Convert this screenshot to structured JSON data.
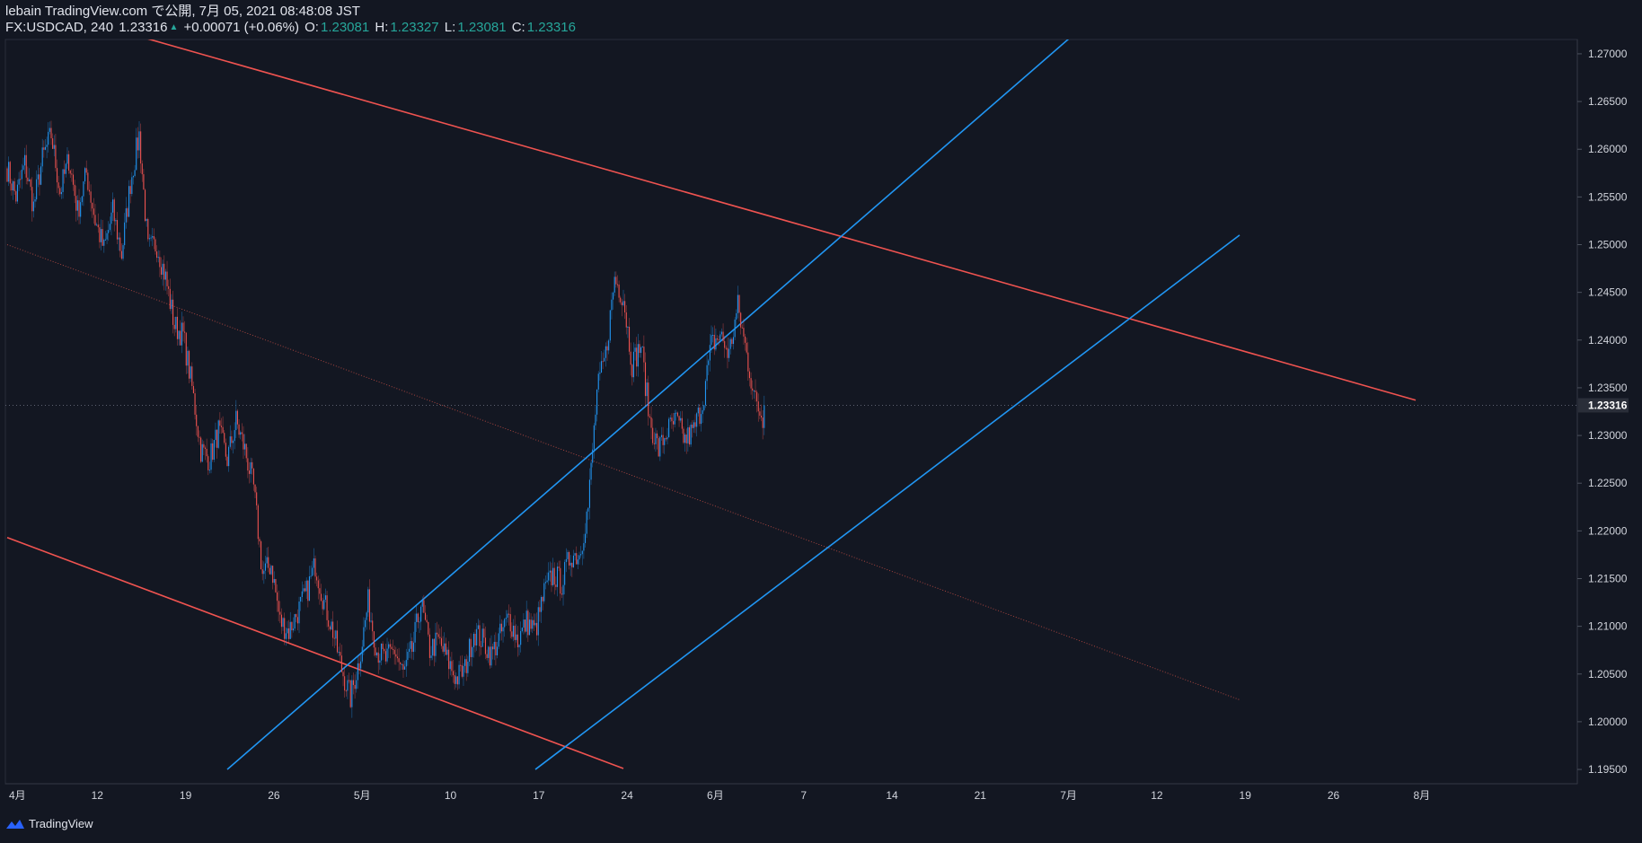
{
  "header": {
    "line1": "lebain TradingView.com で公開, 7月 05, 2021 08:48:08 JST",
    "symbol": "FX:USDCAD, 240",
    "last": "1.23316",
    "change": "+0.00071 (+0.06%)",
    "o_label": "O:",
    "o_val": "1.23081",
    "h_label": "H:",
    "h_val": "1.23327",
    "l_label": "L:",
    "l_val": "1.23081",
    "c_label": "C:",
    "c_val": "1.23316"
  },
  "footer": {
    "brand": "TradingView"
  },
  "colors": {
    "background": "#131722",
    "up": "#2196f3",
    "down": "#ef5350",
    "grid": "#2a2e39",
    "text": "#d1d4dc",
    "teal": "#26a69a"
  },
  "chart_data": {
    "type": "candlestick",
    "title": "FX:USDCAD, 240",
    "xlabel": "",
    "ylabel": "",
    "ylim": [
      1.1935,
      1.2715
    ],
    "x_tick_labels": [
      "4月",
      "12",
      "19",
      "26",
      "5月",
      "10",
      "17",
      "24",
      "6月",
      "7",
      "14",
      "21",
      "7月",
      "12",
      "19",
      "26",
      "8月"
    ],
    "y_tick_labels": [
      "1.27000",
      "1.26500",
      "1.26000",
      "1.25500",
      "1.25000",
      "1.24500",
      "1.24000",
      "1.23500",
      "1.23000",
      "1.22500",
      "1.22000",
      "1.21500",
      "1.21000",
      "1.20500",
      "1.20000",
      "1.19500"
    ],
    "current_price_label": "1.23316",
    "current_price": 1.23316,
    "keypoints": [
      [
        0,
        1.258
      ],
      [
        1,
        1.255
      ],
      [
        2,
        1.2585
      ],
      [
        3,
        1.254
      ],
      [
        4,
        1.259
      ],
      [
        5,
        1.2615
      ],
      [
        6,
        1.2555
      ],
      [
        7,
        1.259
      ],
      [
        8,
        1.2535
      ],
      [
        9,
        1.2575
      ],
      [
        10,
        1.2525
      ],
      [
        11,
        1.2495
      ],
      [
        12,
        1.2535
      ],
      [
        13,
        1.249
      ],
      [
        14,
        1.2565
      ],
      [
        15,
        1.2615
      ],
      [
        16,
        1.2495
      ],
      [
        17,
        1.25
      ],
      [
        18,
        1.2465
      ],
      [
        19,
        1.2415
      ],
      [
        20,
        1.2405
      ],
      [
        21,
        1.235
      ],
      [
        22,
        1.2285
      ],
      [
        23,
        1.2275
      ],
      [
        24,
        1.2305
      ],
      [
        25,
        1.2275
      ],
      [
        26,
        1.2315
      ],
      [
        27,
        1.2285
      ],
      [
        28,
        1.2245
      ],
      [
        29,
        1.2155
      ],
      [
        30,
        1.2165
      ],
      [
        31,
        1.2105
      ],
      [
        32,
        1.2095
      ],
      [
        33,
        1.2115
      ],
      [
        34,
        1.2135
      ],
      [
        35,
        1.2165
      ],
      [
        36,
        1.2125
      ],
      [
        37,
        1.2095
      ],
      [
        38,
        1.2055
      ],
      [
        39,
        1.2025
      ],
      [
        40,
        1.2065
      ],
      [
        41,
        1.2125
      ],
      [
        42,
        1.2075
      ],
      [
        43,
        1.2065
      ],
      [
        44,
        1.2075
      ],
      [
        45,
        1.205
      ],
      [
        46,
        1.2075
      ],
      [
        47,
        1.2125
      ],
      [
        48,
        1.2075
      ],
      [
        49,
        1.2085
      ],
      [
        50,
        1.2065
      ],
      [
        51,
        1.2045
      ],
      [
        52,
        1.2055
      ],
      [
        53,
        1.2095
      ],
      [
        54,
        1.2085
      ],
      [
        55,
        1.207
      ],
      [
        56,
        1.209
      ],
      [
        57,
        1.211
      ],
      [
        58,
        1.2085
      ],
      [
        59,
        1.2105
      ],
      [
        60,
        1.2095
      ],
      [
        61,
        1.2135
      ],
      [
        62,
        1.2155
      ],
      [
        63,
        1.2145
      ],
      [
        64,
        1.2175
      ],
      [
        65,
        1.2175
      ],
      [
        66,
        1.2225
      ],
      [
        67,
        1.2345
      ],
      [
        68,
        1.2385
      ],
      [
        69,
        1.2465
      ],
      [
        70,
        1.2445
      ],
      [
        71,
        1.2375
      ],
      [
        72,
        1.2395
      ],
      [
        73,
        1.2315
      ],
      [
        74,
        1.2285
      ],
      [
        75,
        1.2305
      ],
      [
        76,
        1.2315
      ],
      [
        77,
        1.2295
      ],
      [
        78,
        1.2305
      ],
      [
        79,
        1.2335
      ],
      [
        80,
        1.2395
      ],
      [
        81,
        1.2405
      ],
      [
        82,
        1.2385
      ],
      [
        83,
        1.2435
      ],
      [
        84,
        1.2385
      ],
      [
        85,
        1.2335
      ],
      [
        86,
        1.2315
      ]
    ],
    "current_candle_index": 86,
    "trendlines": [
      {
        "name": "upper-red",
        "color": "#ef5350",
        "from": {
          "d": -10,
          "p": 1.2784
        },
        "to": {
          "d": 160,
          "p": 1.2337
        }
      },
      {
        "name": "lower-red",
        "color": "#ef5350",
        "from": {
          "d": 0,
          "p": 1.2193
        },
        "to": {
          "d": 70,
          "p": 1.1951
        }
      },
      {
        "name": "mid-dotted",
        "color": "#a5443f",
        "from": {
          "d": 0,
          "p": 1.25
        },
        "to": {
          "d": 140,
          "p": 1.2023
        }
      },
      {
        "name": "upper-blue",
        "color": "#2196f3",
        "from": {
          "d": 25,
          "p": 1.195
        },
        "to": {
          "d": 122,
          "p": 1.2727
        }
      },
      {
        "name": "lower-blue",
        "color": "#2196f3",
        "from": {
          "d": 60,
          "p": 1.195
        },
        "to": {
          "d": 140,
          "p": 1.251
        }
      }
    ]
  }
}
